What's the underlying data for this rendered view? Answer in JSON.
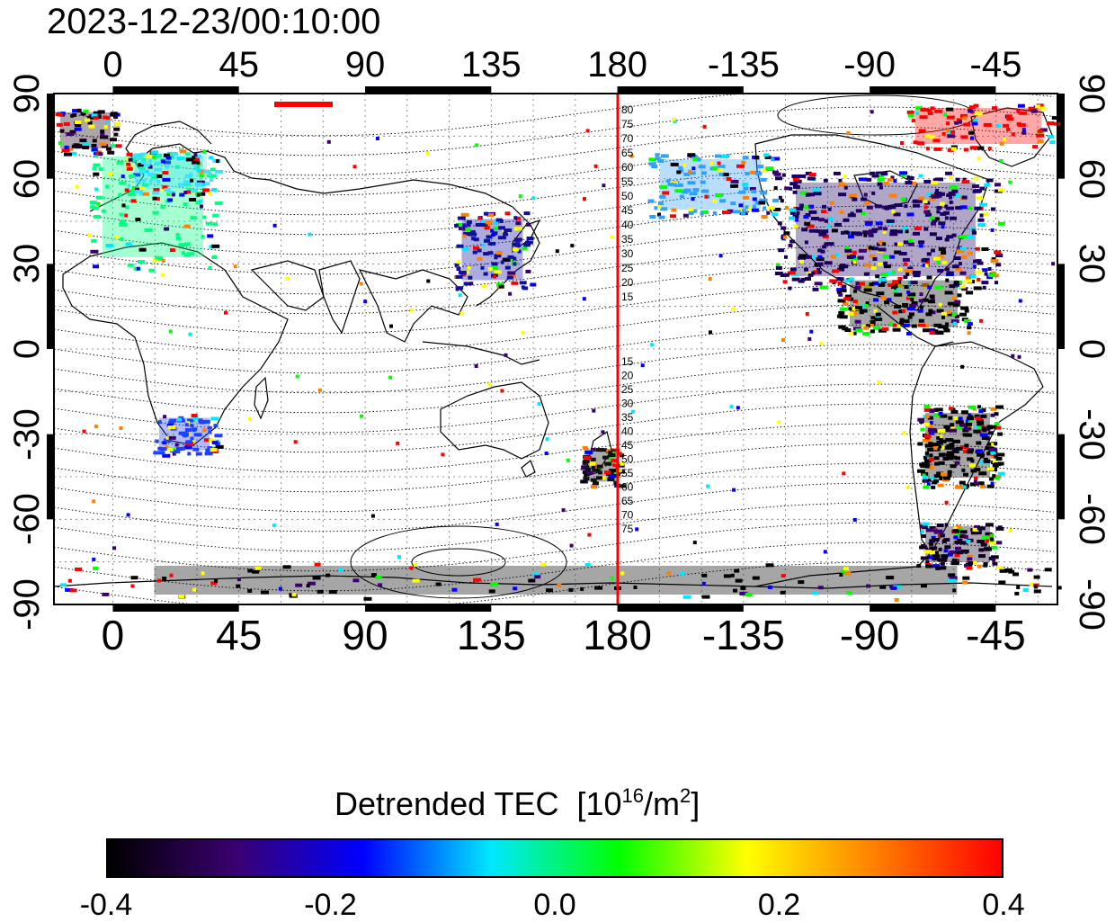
{
  "title": "2023-12-23/00:10:00",
  "map": {
    "top_lon_ticks": [
      "0",
      "45",
      "90",
      "135",
      "180",
      "-135",
      "-90",
      "-45"
    ],
    "bottom_lon_ticks": [
      "0",
      "45",
      "90",
      "135",
      "180",
      "-135",
      "-90",
      "-45"
    ],
    "left_lat_ticks": [
      "90",
      "60",
      "30",
      "0",
      "-30",
      "-60",
      "-90"
    ],
    "right_lat_ticks": [
      "90",
      "60",
      "30",
      "0",
      "-30",
      "-60",
      "-90"
    ],
    "lon_range_east_degrees": [
      -21,
      337
    ],
    "lat_range": [
      -90,
      90
    ],
    "meridian_marker_lon": 180,
    "meridian_marker_color": "#ff0000",
    "contour_labels_north": [
      "80",
      "75",
      "70",
      "65",
      "60",
      "55",
      "50",
      "45",
      "40",
      "35",
      "30",
      "25",
      "20",
      "15"
    ],
    "contour_labels_south": [
      "15",
      "20",
      "25",
      "30",
      "35",
      "40",
      "45",
      "50",
      "55",
      "60",
      "65",
      "70",
      "75"
    ]
  },
  "colorbar": {
    "title": "Detrended TEC",
    "unit_prefix": "[10",
    "unit_exp1": "16",
    "unit_mid": "/m",
    "unit_exp2": "2",
    "unit_suffix": "]",
    "ticks": [
      "-0.4",
      "-0.2",
      "0.0",
      "0.2",
      "0.4"
    ],
    "range": [
      -0.4,
      0.4
    ],
    "colors": [
      "#000000",
      "#3a0070",
      "#0000ff",
      "#00e8ff",
      "#00ff00",
      "#ffff00",
      "#ff8000",
      "#ff0000"
    ]
  }
}
